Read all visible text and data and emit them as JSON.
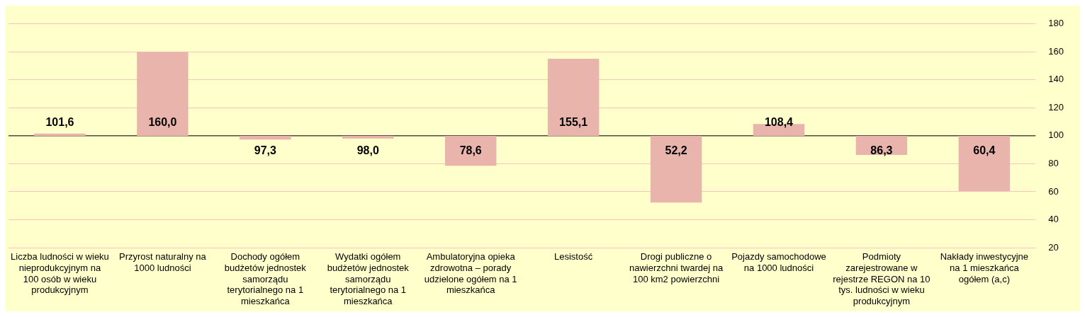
{
  "chart_data": {
    "type": "bar",
    "categories": [
      "Liczba ludności w wieku nieprodukcyjnym na 100 osób w wieku produkcyjnym",
      "Przyrost naturalny na 1000 ludności",
      "Dochody ogółem budżetów jednostek samorządu terytorialnego na 1 mieszkańca",
      "Wydatki ogółem budżetów jednostek samorządu terytorialnego na 1 mieszkańca",
      "Ambulatoryjna opieka zdrowotna – porady udzielone ogółem na 1 mieszkańca",
      "Lesistość",
      "Drogi publiczne o nawierzchni twardej na 100 km2 powierzchni",
      "Pojazdy samochodowe na 1000 ludności",
      "Podmioty zarejestrowane w rejestrze REGON na 10 tys. ludności w wieku produkcyjnym",
      "Nakłady inwestycyjne na 1 mieszkańca ogółem (a,c)"
    ],
    "base": [
      100,
      100,
      100,
      100,
      100,
      100,
      100,
      100,
      100,
      100
    ],
    "values": [
      1.6,
      60.0,
      -2.7,
      -2.0,
      -21.4,
      55.1,
      -47.8,
      8.4,
      -13.7,
      -39.6
    ],
    "value_labels": [
      "101,6",
      "160,0",
      "97,3",
      "98,0",
      "78,6",
      "155,1",
      "52,2",
      "108,4",
      "86,3",
      "60,4"
    ],
    "color": "#e8b4ac",
    "ylim": [
      20,
      180
    ],
    "yticks": [
      20,
      40,
      60,
      80,
      100,
      120,
      140,
      160,
      180
    ],
    "grid": "y",
    "ref_lines": [
      {
        "axis": "y",
        "value": 100,
        "color": "#000000"
      }
    ],
    "legend": false
  }
}
